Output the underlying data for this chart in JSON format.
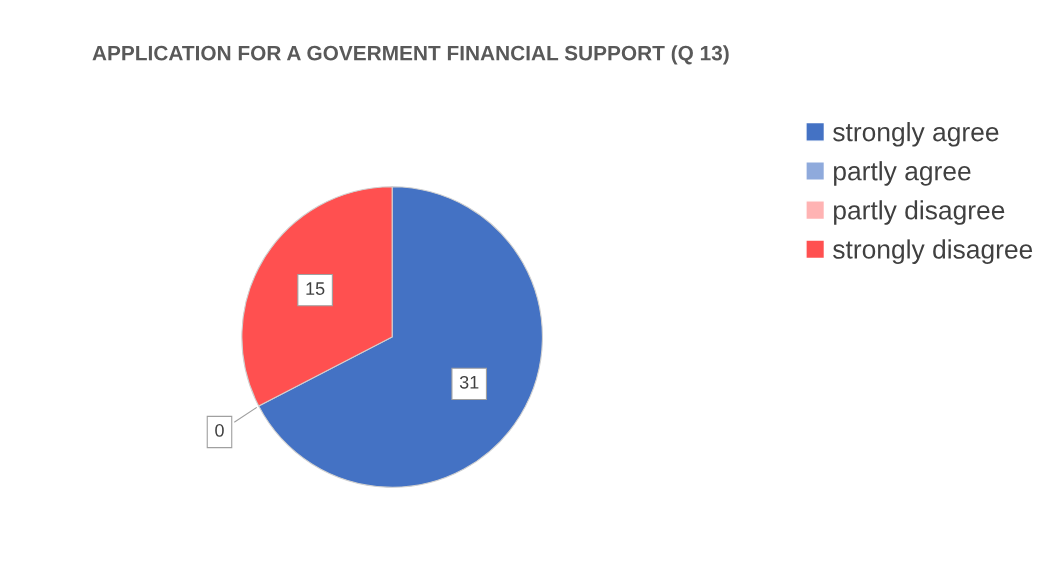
{
  "chart_data": {
    "type": "pie",
    "title": "APPLICATION FOR A GOVERMENT FINANCIAL SUPPORT (Q 13)",
    "categories": [
      "strongly agree",
      "partly agree",
      "partly disagree",
      "strongly disagree"
    ],
    "values": [
      31,
      0,
      0,
      15
    ],
    "colors": [
      "#4472c4",
      "#8faadc",
      "#ffb3b3",
      "#ff5050"
    ],
    "value_labels": [
      "31",
      null,
      "0",
      "15"
    ],
    "legend": "right"
  }
}
